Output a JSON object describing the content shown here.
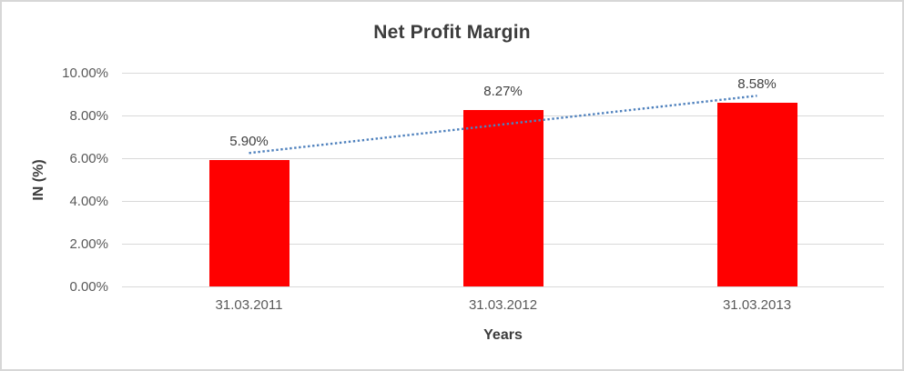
{
  "chart_data": {
    "type": "bar",
    "title": "Net Profit Margin",
    "xlabel": "Years",
    "ylabel": "IN (%)",
    "categories": [
      "31.03.2011",
      "31.03.2012",
      "31.03.2013"
    ],
    "values": [
      5.9,
      8.27,
      8.58
    ],
    "data_labels": [
      "5.90%",
      "8.27%",
      "8.58%"
    ],
    "ylim": [
      0,
      10
    ],
    "ytick_labels": [
      "0.00%",
      "2.00%",
      "4.00%",
      "6.00%",
      "8.00%",
      "10.00%"
    ],
    "grid": true,
    "legend": "none",
    "bar_color": "#FF0000",
    "trendline": {
      "type": "linear",
      "style": "dotted",
      "color": "#4F81BD"
    },
    "colors": {
      "gridline": "#D9D9D9",
      "tick_text": "#595959",
      "title_text": "#3C3C3C",
      "label_text": "#404040"
    }
  }
}
